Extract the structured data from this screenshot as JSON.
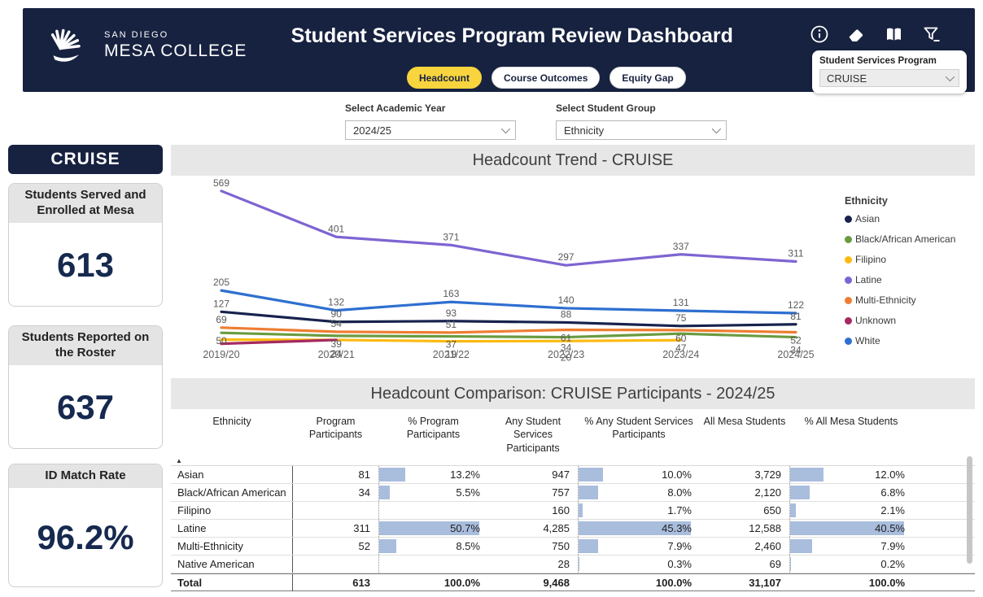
{
  "header": {
    "logo": {
      "line1": "SAN DIEGO",
      "line2": "MESA COLLEGE"
    },
    "title": "Student Services Program Review Dashboard",
    "tabs": [
      {
        "label": "Headcount",
        "active": true
      },
      {
        "label": "Course Outcomes",
        "active": false
      },
      {
        "label": "Equity Gap",
        "active": false
      }
    ],
    "icons": [
      "info-icon",
      "eraser-icon",
      "book-icon",
      "filter-icon"
    ],
    "program_slicer": {
      "label": "Student Services Program",
      "value": "CRUISE"
    }
  },
  "filters": {
    "academic_year": {
      "label": "Select Academic Year",
      "value": "2024/25"
    },
    "student_group": {
      "label": "Select Student Group",
      "value": "Ethnicity"
    }
  },
  "sidebar": {
    "program_badge": "CRUISE",
    "cards": [
      {
        "title": "Students Served and Enrolled at Mesa",
        "value": "613"
      },
      {
        "title": "Students Reported on the Roster",
        "value": "637"
      },
      {
        "title": "ID Match Rate",
        "value": "96.2%"
      }
    ]
  },
  "chart_data": {
    "type": "line",
    "title": "Headcount Trend - CRUISE",
    "x": [
      "2019/20",
      "2020/21",
      "2021/22",
      "2022/23",
      "2023/24",
      "2024/25"
    ],
    "legend_title": "Ethnicity",
    "legend_position": "right",
    "ylim": [
      0,
      620
    ],
    "grid": false,
    "series": [
      {
        "name": "Asian",
        "color": "#17224d",
        "values": [
          127,
          90,
          93,
          88,
          75,
          81
        ],
        "labels": [
          127,
          90,
          93,
          88,
          75,
          81
        ]
      },
      {
        "name": "Black/African American",
        "color": "#699b40",
        "values": [
          50,
          39,
          37,
          34,
          47,
          34
        ],
        "labels": [
          50,
          39,
          37,
          34,
          47,
          34
        ]
      },
      {
        "name": "Filipino",
        "color": "#fcba12",
        "values": [
          25,
          24,
          19,
          20,
          23,
          null
        ],
        "labels": [
          null,
          null,
          19,
          20,
          null,
          null
        ]
      },
      {
        "name": "Latine",
        "color": "#7e64d2",
        "values": [
          569,
          401,
          371,
          297,
          337,
          311
        ],
        "labels": [
          569,
          401,
          371,
          297,
          337,
          311
        ]
      },
      {
        "name": "Multi-Ethnicity",
        "color": "#ee7d31",
        "values": [
          69,
          54,
          51,
          61,
          60,
          52
        ],
        "labels": [
          69,
          54,
          51,
          61,
          60,
          52
        ]
      },
      {
        "name": "Unknown",
        "color": "#a52a60",
        "values": [
          10,
          24,
          null,
          null,
          null,
          null
        ],
        "labels": [
          null,
          24,
          null,
          null,
          null,
          null
        ]
      },
      {
        "name": "White",
        "color": "#2e6fd0",
        "values": [
          205,
          132,
          163,
          140,
          131,
          122
        ],
        "labels": [
          205,
          132,
          163,
          140,
          131,
          122
        ]
      }
    ]
  },
  "table": {
    "title": "Headcount Comparison: CRUISE Participants - 2024/25",
    "columns": [
      "Ethnicity",
      "Program Participants",
      "% Program Participants",
      "Any Student Services Participants",
      "% Any Student Services Participants",
      "All Mesa Students",
      "% All Mesa Students"
    ],
    "bar_scale_max": {
      "program_pct": 50.7,
      "any_ss_pct": 45.3,
      "all_mesa_pct": 40.5
    },
    "rows": [
      {
        "cells": [
          "Asian",
          "81",
          "13.2%",
          "947",
          "10.0%",
          "3,729",
          "12.0%"
        ],
        "bar_pcts": [
          null,
          null,
          13.2,
          null,
          10.0,
          null,
          12.0
        ],
        "total": false
      },
      {
        "cells": [
          "Black/African American",
          "34",
          "5.5%",
          "757",
          "8.0%",
          "2,120",
          "6.8%"
        ],
        "bar_pcts": [
          null,
          null,
          5.5,
          null,
          8.0,
          null,
          6.8
        ],
        "total": false
      },
      {
        "cells": [
          "Filipino",
          "",
          "",
          "160",
          "1.7%",
          "650",
          "2.1%"
        ],
        "bar_pcts": [
          null,
          null,
          null,
          null,
          1.7,
          null,
          2.1
        ],
        "total": false
      },
      {
        "cells": [
          "Latine",
          "311",
          "50.7%",
          "4,285",
          "45.3%",
          "12,588",
          "40.5%"
        ],
        "bar_pcts": [
          null,
          null,
          50.7,
          null,
          45.3,
          null,
          40.5
        ],
        "total": false
      },
      {
        "cells": [
          "Multi-Ethnicity",
          "52",
          "8.5%",
          "750",
          "7.9%",
          "2,460",
          "7.9%"
        ],
        "bar_pcts": [
          null,
          null,
          8.5,
          null,
          7.9,
          null,
          7.9
        ],
        "total": false
      },
      {
        "cells": [
          "Native American",
          "",
          "",
          "28",
          "0.3%",
          "69",
          "0.2%"
        ],
        "bar_pcts": [
          null,
          null,
          null,
          null,
          0.3,
          null,
          0.2
        ],
        "total": false
      },
      {
        "cells": [
          "Total",
          "613",
          "100.0%",
          "9,468",
          "100.0%",
          "31,107",
          "100.0%"
        ],
        "bar_pcts": [
          null,
          null,
          null,
          null,
          null,
          null,
          null
        ],
        "total": true
      }
    ]
  },
  "colors": {
    "header_bg": "#172240",
    "active_tab": "#f8d43e",
    "kpi_text": "#16294f",
    "table_bar_fill": "#a9bddd",
    "panel_header_bg": "#e7e7e7"
  }
}
